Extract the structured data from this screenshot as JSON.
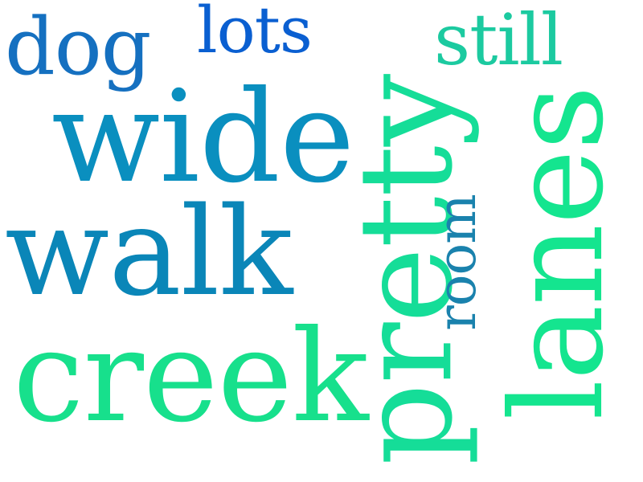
{
  "words": {
    "dog": {
      "text": "dog",
      "color": "#1570c0"
    },
    "lots": {
      "text": "lots",
      "color": "#0a5fd1"
    },
    "still": {
      "text": "still",
      "color": "#1ccaa0"
    },
    "wide": {
      "text": "wide",
      "color": "#0a8fbf"
    },
    "walk": {
      "text": "walk",
      "color": "#0a86b8"
    },
    "creek": {
      "text": "creek",
      "color": "#17e08c"
    },
    "pretty": {
      "text": "pretty",
      "color": "#15dd98"
    },
    "room": {
      "text": "room",
      "color": "#1a82ad"
    },
    "lanes": {
      "text": "lanes",
      "color": "#14e58f"
    }
  }
}
